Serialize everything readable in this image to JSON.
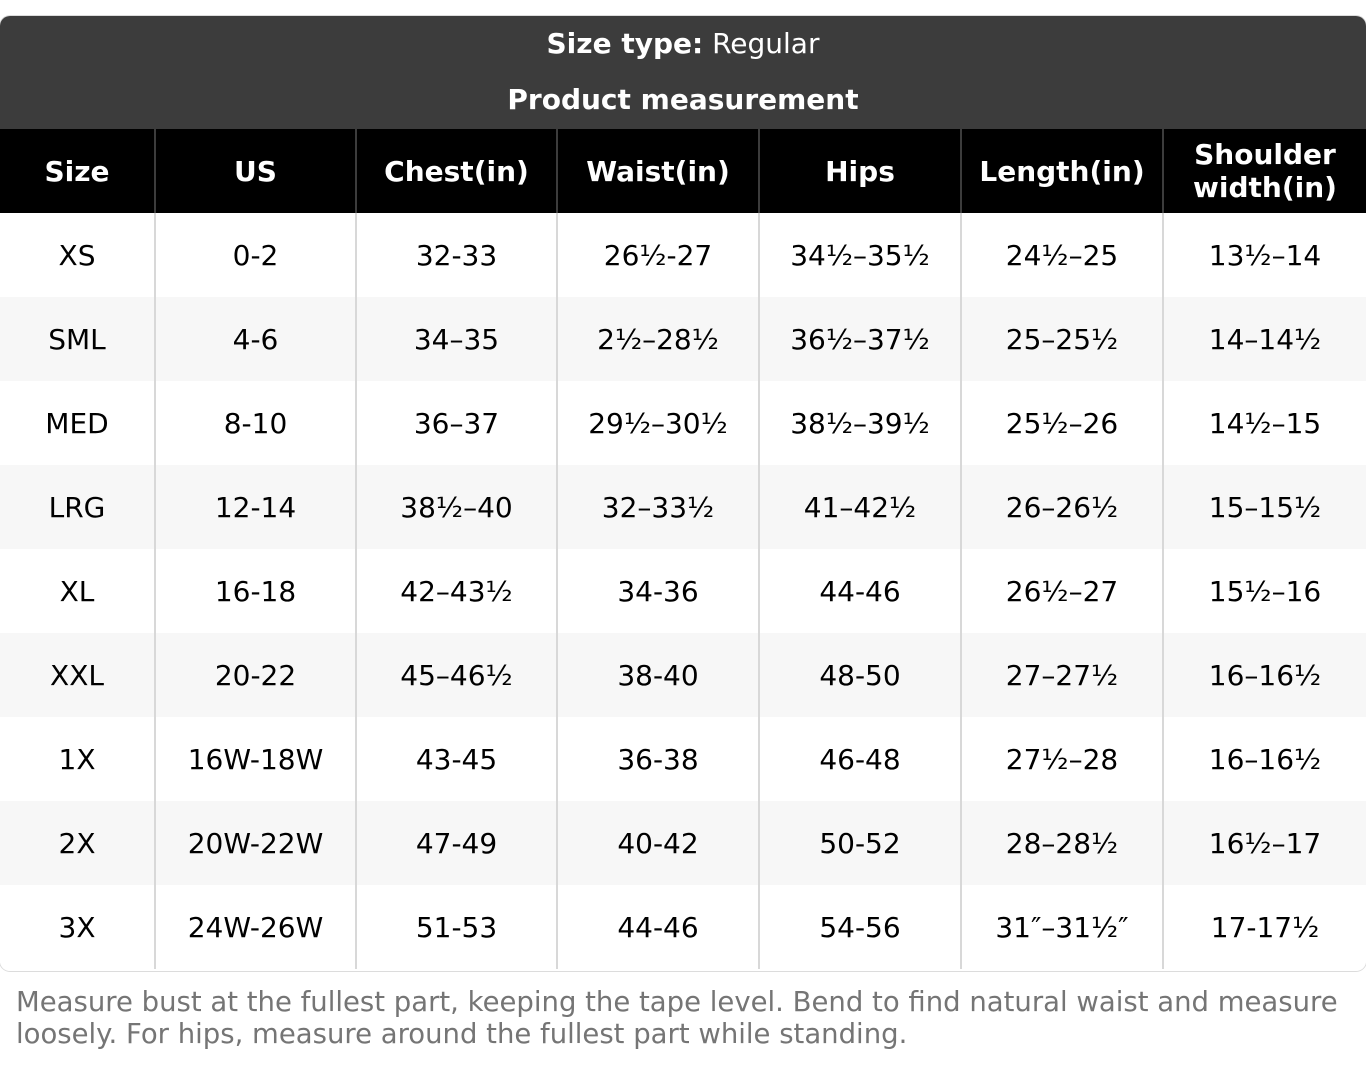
{
  "header": {
    "size_type_label": "Size type:",
    "size_type_value": " Regular",
    "title": "Product measurement"
  },
  "table": {
    "columns": [
      "Size",
      "US",
      "Chest(in)",
      "Waist(in)",
      "Hips",
      "Length(in)",
      "Shoulder width(in)"
    ],
    "rows": [
      [
        "XS",
        "0-2",
        "32-33",
        "26½-27",
        "34½–35½",
        "24½–25",
        "13½–14"
      ],
      [
        "SML",
        "4-6",
        "34–35",
        "2½–28½",
        "36½–37½",
        "25–25½",
        "14–14½"
      ],
      [
        "MED",
        "8-10",
        "36–37",
        "29½–30½",
        "38½–39½",
        "25½–26",
        "14½–15"
      ],
      [
        "LRG",
        "12-14",
        "38½–40",
        "32–33½",
        "41–42½",
        "26–26½",
        "15–15½"
      ],
      [
        "XL",
        "16-18",
        "42–43½",
        "34-36",
        "44-46",
        "26½–27",
        "15½–16"
      ],
      [
        "XXL",
        "20-22",
        "45–46½",
        "38-40",
        "48-50",
        "27–27½",
        "16–16½"
      ],
      [
        "1X",
        "16W-18W",
        "43-45",
        "36-38",
        "46-48",
        "27½–28",
        "16–16½"
      ],
      [
        "2X",
        "20W-22W",
        "47-49",
        "40-42",
        "50-52",
        "28–28½",
        "16½–17"
      ],
      [
        "3X",
        "24W-26W",
        "51-53",
        "44-46",
        "54-56",
        "31″–31½″",
        "17-17½"
      ]
    ]
  },
  "footnote": "Measure bust at the fullest part, keeping the tape level. Bend to find natural waist and measure loosely. For hips, measure around the fullest part while standing."
}
